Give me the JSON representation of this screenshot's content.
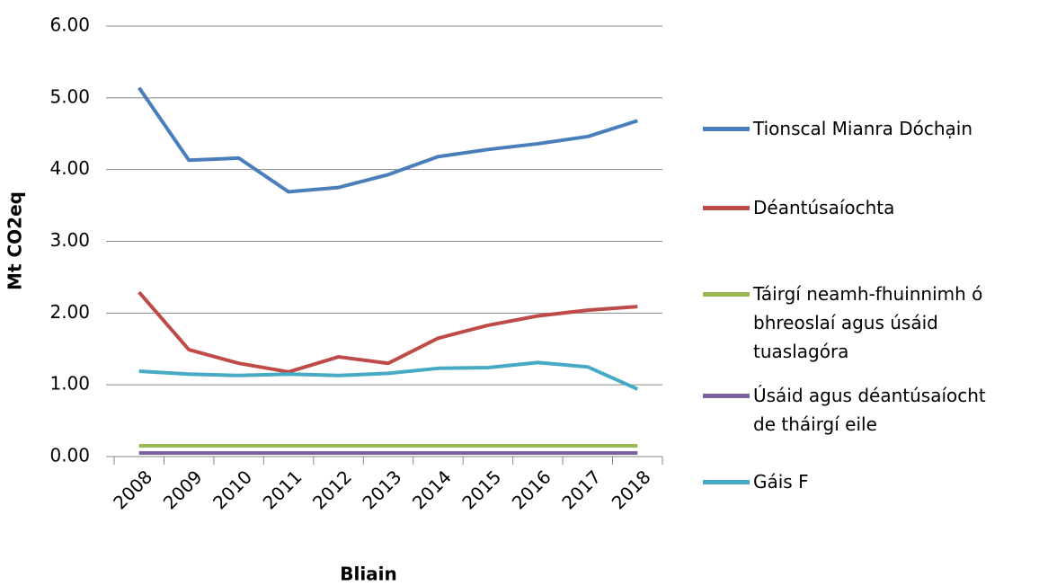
{
  "chart_data": {
    "type": "line",
    "x_label": "Bliain",
    "y_label": "Mt CO2eq",
    "categories": [
      "2008",
      "2009",
      "2010",
      "2011",
      "2012",
      "2013",
      "2014",
      "2015",
      "2016",
      "2017",
      "2018"
    ],
    "series": [
      {
        "name": "Tionscal Mianra Dóchạin",
        "color": "#4a7ebb",
        "values": [
          5.14,
          4.13,
          4.16,
          3.69,
          3.75,
          3.93,
          4.18,
          4.28,
          4.36,
          4.46,
          4.68
        ]
      },
      {
        "name": "Déantúsaíochta",
        "color": "#be4b48",
        "values": [
          2.29,
          1.49,
          1.3,
          1.18,
          1.39,
          1.3,
          1.65,
          1.83,
          1.96,
          2.04,
          2.09
        ]
      },
      {
        "name": "Táirgí neamh-fhuinnimh ó\nbhreoslaí agus úsáid\ntuaslagóra",
        "color": "#98b954",
        "values": [
          0.15,
          0.15,
          0.15,
          0.15,
          0.15,
          0.15,
          0.15,
          0.15,
          0.15,
          0.15,
          0.15
        ]
      },
      {
        "name": "Úsáid agus déantúsaíocht\nde tháirgí eile",
        "color": "#7d60a0",
        "values": [
          0.05,
          0.05,
          0.05,
          0.05,
          0.05,
          0.05,
          0.05,
          0.05,
          0.05,
          0.05,
          0.05
        ]
      },
      {
        "name": "Gáis F",
        "color": "#46aac5",
        "values": [
          1.19,
          1.15,
          1.13,
          1.15,
          1.13,
          1.16,
          1.23,
          1.24,
          1.31,
          1.25,
          0.94
        ]
      }
    ],
    "ylim": [
      0,
      6
    ],
    "yticks": [
      {
        "value": 0,
        "label": "0.00"
      },
      {
        "value": 1,
        "label": "1.00"
      },
      {
        "value": 2,
        "label": "2.00"
      },
      {
        "value": 3,
        "label": "3.00"
      },
      {
        "value": 4,
        "label": "4.00"
      },
      {
        "value": 5,
        "label": "5.00"
      },
      {
        "value": 6,
        "label": "6.00"
      }
    ],
    "grid": true,
    "legend": "right"
  }
}
